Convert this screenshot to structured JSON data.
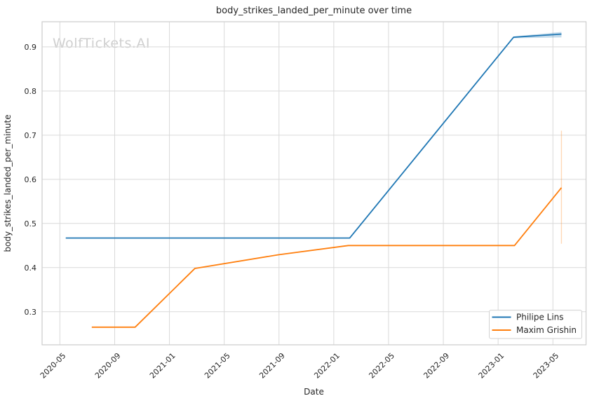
{
  "watermark": "WolfTickets.AI",
  "chart_data": {
    "type": "line",
    "title": "body_strikes_landed_per_minute over time",
    "xlabel": "Date",
    "ylabel": "body_strikes_landed_per_minute",
    "x_tick_labels": [
      "2020-05",
      "2020-09",
      "2021-01",
      "2021-05",
      "2021-09",
      "2022-01",
      "2022-05",
      "2022-09",
      "2023-01",
      "2023-05"
    ],
    "y_ticks": [
      0.3,
      0.4,
      0.5,
      0.6,
      0.7,
      0.8,
      0.9
    ],
    "y_tick_labels": [
      "0.3",
      "0.4",
      "0.5",
      "0.6",
      "0.7",
      "0.8",
      "0.9"
    ],
    "xlim_decimal_years": [
      2020.225,
      2023.535
    ],
    "ylim": [
      0.225,
      0.957
    ],
    "grid": true,
    "legend": {
      "location": "lower right"
    },
    "series": [
      {
        "name": "Philipe Lins",
        "color": "#1f77b4",
        "points": [
          [
            "2020-05-14",
            0.467
          ],
          [
            "2022-02-06",
            0.467
          ],
          [
            "2023-02-05",
            0.922
          ],
          [
            "2023-05-20",
            0.929
          ]
        ],
        "ci_band": {
          "dates": [
            "2023-02-05",
            "2023-05-20"
          ],
          "hi": [
            0.9235,
            0.934
          ],
          "lo": [
            0.9195,
            0.9215
          ]
        }
      },
      {
        "name": "Maxim Grishin",
        "color": "#ff7f0e",
        "points": [
          [
            "2020-07-11",
            0.265
          ],
          [
            "2020-10-16",
            0.265
          ],
          [
            "2021-02-27",
            0.398
          ],
          [
            "2021-08-30",
            0.429
          ],
          [
            "2022-02-03",
            0.45
          ],
          [
            "2023-02-07",
            0.45
          ],
          [
            "2023-05-20",
            0.581
          ]
        ],
        "error_bar": {
          "date": "2023-05-20",
          "lo": 0.454,
          "hi": 0.71
        }
      }
    ]
  }
}
